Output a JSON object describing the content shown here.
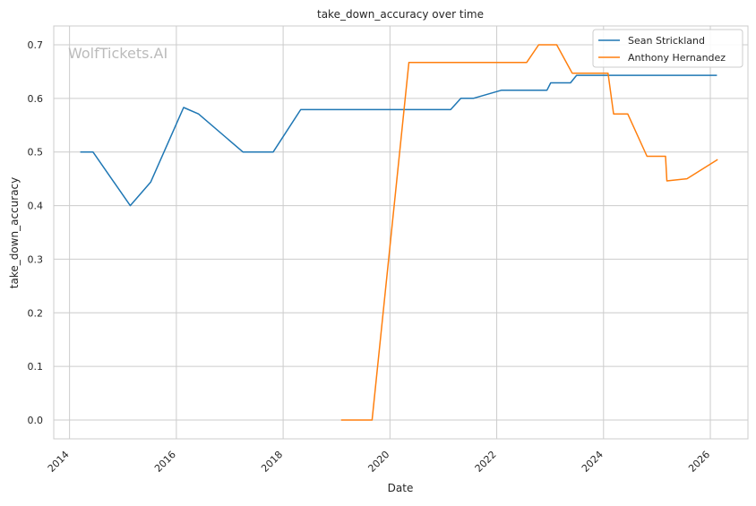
{
  "watermark": "WolfTickets.AI",
  "chart_data": {
    "type": "line",
    "title": "take_down_accuracy over time",
    "xlabel": "Date",
    "ylabel": "take_down_accuracy",
    "xlim": [
      "2013-09-15",
      "2026-09-15"
    ],
    "ylim": [
      -0.035,
      0.735
    ],
    "x_ticks": [
      "2014",
      "2016",
      "2018",
      "2020",
      "2022",
      "2024",
      "2026"
    ],
    "y_ticks": [
      "0.0",
      "0.1",
      "0.2",
      "0.3",
      "0.4",
      "0.5",
      "0.6",
      "0.7"
    ],
    "grid": true,
    "legend_position": "top-right",
    "colors": {
      "Sean Strickland": "#1f77b4",
      "Anthony Hernandez": "#ff7f0e"
    },
    "series": [
      {
        "name": "Sean Strickland",
        "points": [
          [
            "2014-03-15",
            0.5
          ],
          [
            "2014-06-10",
            0.5
          ],
          [
            "2015-02-20",
            0.4
          ],
          [
            "2015-07-10",
            0.444
          ],
          [
            "2016-02-20",
            0.583
          ],
          [
            "2016-06-01",
            0.571
          ],
          [
            "2017-04-01",
            0.5
          ],
          [
            "2017-10-25",
            0.5
          ],
          [
            "2018-05-01",
            0.579
          ],
          [
            "2021-02-20",
            0.579
          ],
          [
            "2021-05-01",
            0.6
          ],
          [
            "2021-07-25",
            0.6
          ],
          [
            "2022-02-01",
            0.615
          ],
          [
            "2022-12-10",
            0.615
          ],
          [
            "2023-01-05",
            0.629
          ],
          [
            "2023-05-20",
            0.629
          ],
          [
            "2023-07-01",
            0.643
          ],
          [
            "2026-02-15",
            0.643
          ]
        ]
      },
      {
        "name": "Anthony Hernandez",
        "points": [
          [
            "2019-02-01",
            0.0
          ],
          [
            "2019-09-01",
            0.0
          ],
          [
            "2020-05-10",
            0.667
          ],
          [
            "2022-07-25",
            0.667
          ],
          [
            "2022-10-15",
            0.7
          ],
          [
            "2023-02-15",
            0.7
          ],
          [
            "2023-06-01",
            0.647
          ],
          [
            "2024-02-01",
            0.647
          ],
          [
            "2024-03-10",
            0.571
          ],
          [
            "2024-06-15",
            0.571
          ],
          [
            "2024-10-25",
            0.492
          ],
          [
            "2025-03-01",
            0.492
          ],
          [
            "2025-03-10",
            0.446
          ],
          [
            "2025-07-25",
            0.45
          ],
          [
            "2026-02-20",
            0.486
          ]
        ]
      }
    ]
  }
}
